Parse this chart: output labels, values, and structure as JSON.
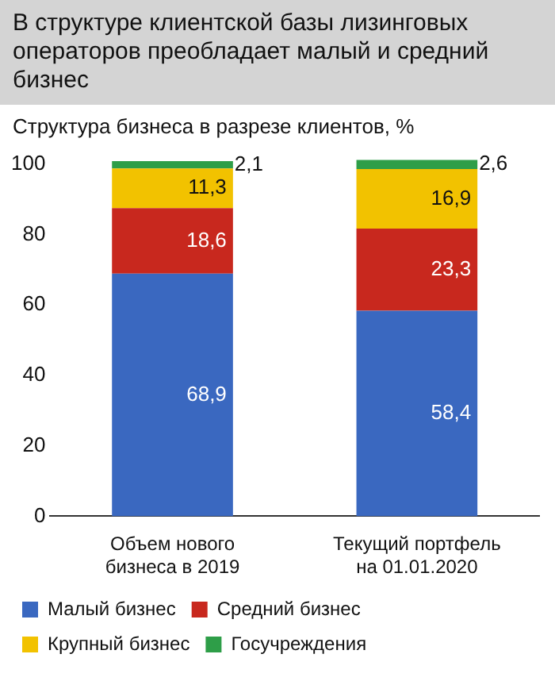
{
  "chart_data": {
    "type": "bar",
    "stacked": true,
    "title": "В структуре клиентской базы лизинговых операторов  преобладает малый и средний бизнес",
    "subtitle": "Структура бизнеса в разрезе клиентов, %",
    "categories": [
      "Объем нового бизнеса в 2019",
      "Текущий портфель на 01.01.2020"
    ],
    "series": [
      {
        "name": "Малый бизнес",
        "color": "#3a68c0",
        "values": [
          68.9,
          58.4
        ],
        "value_labels": [
          "68,9",
          "58,4"
        ]
      },
      {
        "name": "Средний бизнес",
        "color": "#c8281e",
        "values": [
          18.6,
          23.3
        ],
        "value_labels": [
          "18,6",
          "23,3"
        ]
      },
      {
        "name": "Крупный бизнес",
        "color": "#f2c200",
        "values": [
          11.3,
          16.9
        ],
        "value_labels": [
          "11,3",
          "16,9"
        ]
      },
      {
        "name": "Госучреждения",
        "color": "#2e9e48",
        "values": [
          2.1,
          2.6
        ],
        "value_labels": [
          "2,1",
          "2,6"
        ]
      }
    ],
    "ylim": [
      0,
      102
    ],
    "yticks": [
      0,
      20,
      40,
      60,
      80,
      100
    ],
    "grid": false,
    "legend": "bottom"
  }
}
